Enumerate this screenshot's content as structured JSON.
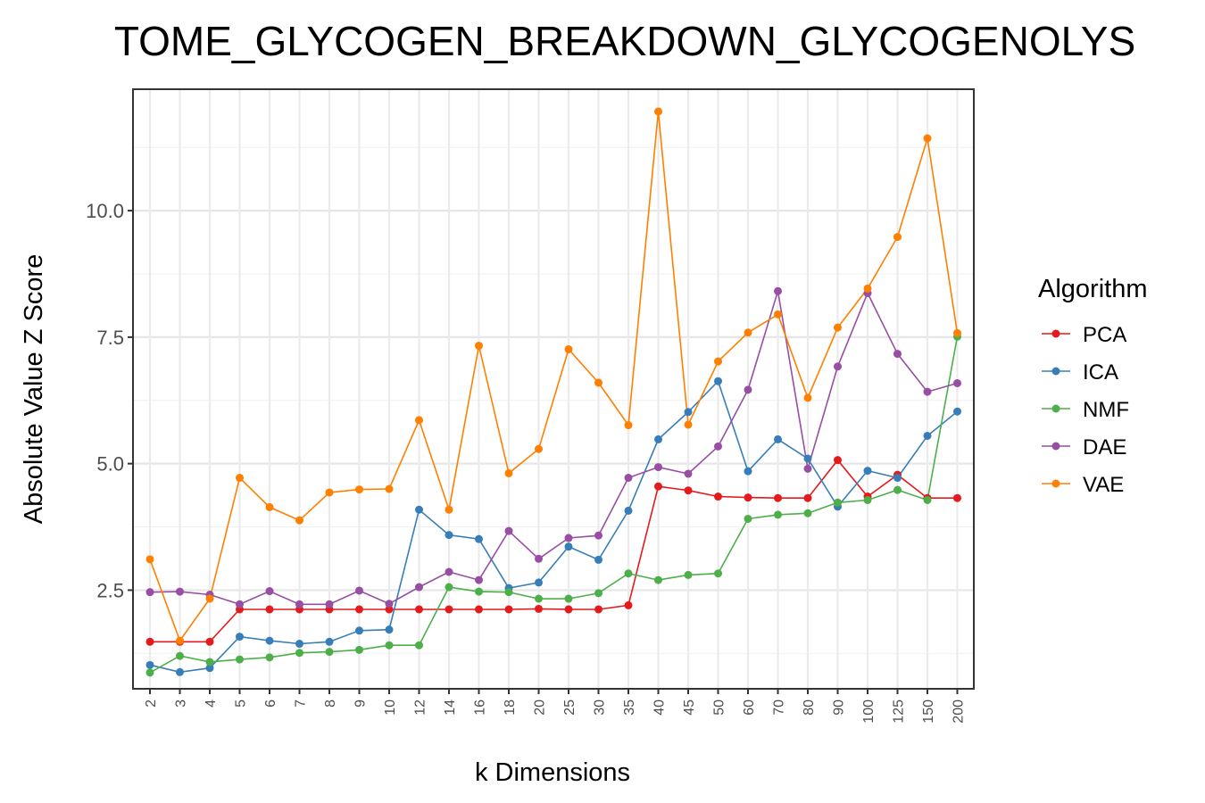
{
  "chart_data": {
    "type": "line",
    "title": "TOME_GLYCOGEN_BREAKDOWN_GLYCOGENOLYS",
    "xlabel": "k Dimensions",
    "ylabel": "Absolute Value Z Score",
    "categories": [
      "2",
      "3",
      "4",
      "5",
      "6",
      "7",
      "8",
      "9",
      "10",
      "12",
      "14",
      "16",
      "18",
      "20",
      "25",
      "30",
      "35",
      "40",
      "45",
      "50",
      "60",
      "70",
      "80",
      "90",
      "100",
      "125",
      "150",
      "200"
    ],
    "yticks": [
      2.5,
      5.0,
      7.5,
      10.0
    ],
    "ytick_labels": [
      "2.5",
      "5.0",
      "7.5",
      "10.0"
    ],
    "ylim": [
      0.55,
      12.4
    ],
    "grid": true,
    "legend": {
      "title": "Algorithm",
      "placement": "right"
    },
    "series": [
      {
        "name": "PCA",
        "color": "#e41a1c",
        "values": [
          1.48,
          1.48,
          1.48,
          2.12,
          2.12,
          2.12,
          2.12,
          2.12,
          2.12,
          2.12,
          2.12,
          2.12,
          2.12,
          2.13,
          2.12,
          2.12,
          2.2,
          4.55,
          4.47,
          4.35,
          4.33,
          4.32,
          4.32,
          5.07,
          4.35,
          4.78,
          4.32,
          4.32
        ]
      },
      {
        "name": "ICA",
        "color": "#377eb8",
        "values": [
          1.02,
          0.88,
          0.96,
          1.58,
          1.5,
          1.44,
          1.48,
          1.7,
          1.72,
          4.09,
          3.59,
          3.51,
          2.54,
          2.65,
          3.36,
          3.1,
          4.07,
          5.48,
          6.02,
          6.63,
          4.85,
          5.48,
          5.1,
          4.15,
          4.86,
          4.72,
          5.55,
          6.03
        ]
      },
      {
        "name": "NMF",
        "color": "#4daf4a",
        "values": [
          0.87,
          1.2,
          1.08,
          1.13,
          1.17,
          1.26,
          1.28,
          1.32,
          1.41,
          1.41,
          2.56,
          2.47,
          2.46,
          2.33,
          2.33,
          2.44,
          2.83,
          2.7,
          2.8,
          2.83,
          3.91,
          3.99,
          4.02,
          4.23,
          4.28,
          4.48,
          4.28,
          7.51
        ]
      },
      {
        "name": "DAE",
        "color": "#984ea3",
        "values": [
          2.46,
          2.47,
          2.41,
          2.22,
          2.48,
          2.22,
          2.22,
          2.49,
          2.23,
          2.56,
          2.86,
          2.7,
          3.67,
          3.12,
          3.53,
          3.58,
          4.72,
          4.93,
          4.8,
          5.34,
          6.46,
          8.41,
          4.9,
          6.92,
          8.37,
          7.17,
          6.42,
          6.59
        ]
      },
      {
        "name": "VAE",
        "color": "#ff7f00",
        "values": [
          3.11,
          1.5,
          2.33,
          4.72,
          4.14,
          3.88,
          4.43,
          4.49,
          4.5,
          5.86,
          4.09,
          7.33,
          4.81,
          5.29,
          7.26,
          6.6,
          5.76,
          11.96,
          5.77,
          7.02,
          7.59,
          7.95,
          6.3,
          7.69,
          8.46,
          9.48,
          11.43,
          7.58
        ]
      }
    ]
  }
}
